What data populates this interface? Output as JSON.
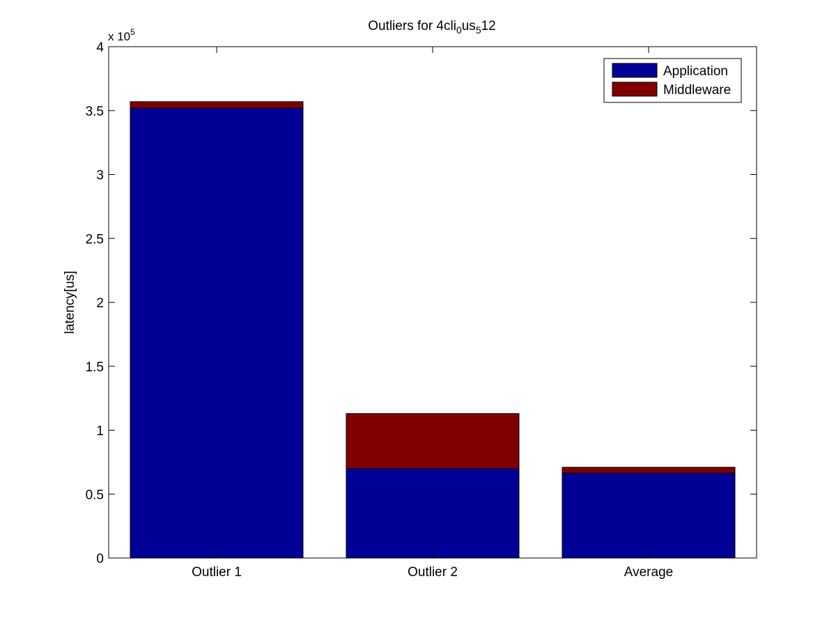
{
  "chart_data": {
    "type": "bar",
    "stacked": true,
    "title": {
      "prefix": "Outliers for 4cli",
      "sub1": "0",
      "mid": "us",
      "sub2": "5",
      "suffix": "12"
    },
    "ylabel": "latency[us]",
    "xlabel": "",
    "y_multiplier": {
      "base": "x 10",
      "exponent": "5"
    },
    "ylim": [
      0,
      400000
    ],
    "y_ticks": [
      0,
      50000,
      100000,
      150000,
      200000,
      250000,
      300000,
      350000,
      400000
    ],
    "y_tick_labels": [
      "0",
      "0.5",
      "1",
      "1.5",
      "2",
      "2.5",
      "3",
      "3.5",
      "4"
    ],
    "categories": [
      "Outlier 1",
      "Outlier 2",
      "Average"
    ],
    "series": [
      {
        "name": "Application",
        "color": "#000096",
        "values": [
          352000,
          70000,
          66500
        ]
      },
      {
        "name": "Middleware",
        "color": "#800000",
        "values": [
          5000,
          43000,
          4500
        ]
      }
    ],
    "legend": {
      "position": "top-right",
      "entries": [
        "Application",
        "Middleware"
      ]
    },
    "grid": false
  }
}
